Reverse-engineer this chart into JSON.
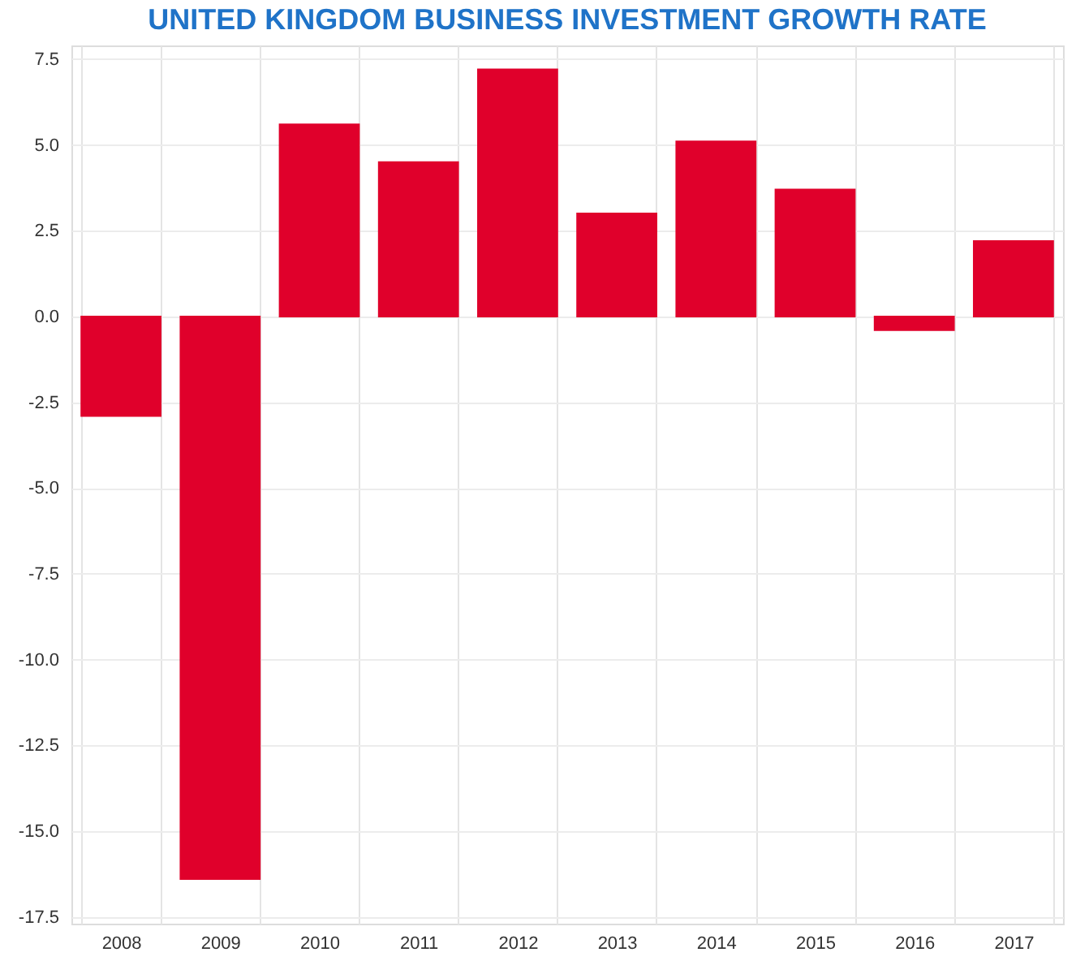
{
  "chart_data": {
    "type": "bar",
    "title": "UNITED KINGDOM BUSINESS INVESTMENT GROWTH RATE",
    "categories": [
      "2008",
      "2009",
      "2010",
      "2011",
      "2012",
      "2013",
      "2014",
      "2015",
      "2016",
      "2017"
    ],
    "values": [
      -2.9,
      -16.4,
      5.6,
      4.5,
      7.2,
      3.0,
      5.1,
      3.7,
      -0.4,
      2.2
    ],
    "color": "#e0002b",
    "ylim": [
      -17.7,
      7.9
    ],
    "yticks": [
      {
        "value": 7.5,
        "label": "7.5"
      },
      {
        "value": 5,
        "label": "5.0"
      },
      {
        "value": 2.5,
        "label": "2.5"
      },
      {
        "value": 0,
        "label": "0.0"
      },
      {
        "value": -2.5,
        "label": "-2.5"
      },
      {
        "value": -5,
        "label": "-5.0"
      },
      {
        "value": -7.5,
        "label": "-7.5"
      },
      {
        "value": -10,
        "label": "-10.0"
      },
      {
        "value": -12.5,
        "label": "-12.5"
      },
      {
        "value": -15,
        "label": "-15.0"
      },
      {
        "value": -17.5,
        "label": "-17.5"
      }
    ],
    "grid": true
  }
}
